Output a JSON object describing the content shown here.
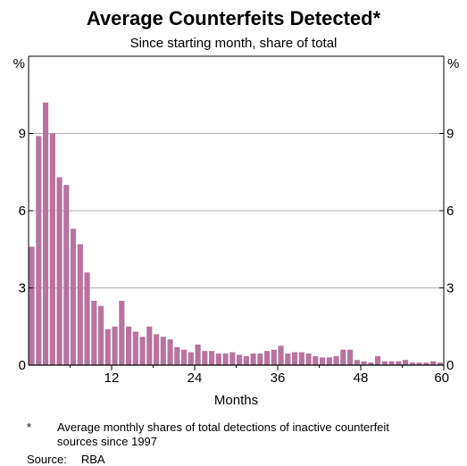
{
  "title": "Average Counterfeits Detected*",
  "subtitle": "Since starting month, share of total",
  "footnote": {
    "marker": "*",
    "text": "Average monthly shares of total detections of inactive counterfeit sources since 1997"
  },
  "source": {
    "label": "Source:",
    "value": "RBA"
  },
  "colors": {
    "bar": "#b8749e",
    "grid": "#b0b0b0",
    "axis": "#000000"
  },
  "chart_data": {
    "type": "bar",
    "title": "Average Counterfeits Detected*",
    "subtitle": "Since starting month, share of total",
    "xlabel": "Months",
    "ylabel_left": "%",
    "ylabel_right": "%",
    "ylim": [
      0,
      12
    ],
    "yticks": [
      0,
      3,
      6,
      9
    ],
    "xlim": [
      0,
      60
    ],
    "xticks": [
      12,
      24,
      36,
      48,
      60
    ],
    "grid": true,
    "x": [
      1,
      2,
      3,
      4,
      5,
      6,
      7,
      8,
      9,
      10,
      11,
      12,
      13,
      14,
      15,
      16,
      17,
      18,
      19,
      20,
      21,
      22,
      23,
      24,
      25,
      26,
      27,
      28,
      29,
      30,
      31,
      32,
      33,
      34,
      35,
      36,
      37,
      38,
      39,
      40,
      41,
      42,
      43,
      44,
      45,
      46,
      47,
      48,
      49,
      50,
      51,
      52,
      53,
      54,
      55,
      56,
      57,
      58,
      59,
      60
    ],
    "values": [
      4.6,
      8.9,
      10.2,
      9.0,
      7.3,
      7.0,
      5.3,
      4.7,
      3.6,
      2.5,
      2.3,
      1.4,
      1.5,
      2.5,
      1.5,
      1.3,
      1.1,
      1.5,
      1.2,
      1.1,
      1.0,
      0.7,
      0.6,
      0.5,
      0.8,
      0.55,
      0.55,
      0.45,
      0.45,
      0.5,
      0.4,
      0.35,
      0.45,
      0.45,
      0.55,
      0.6,
      0.75,
      0.45,
      0.5,
      0.5,
      0.45,
      0.35,
      0.3,
      0.3,
      0.35,
      0.6,
      0.6,
      0.2,
      0.15,
      0.1,
      0.35,
      0.15,
      0.15,
      0.15,
      0.2,
      0.1,
      0.1,
      0.1,
      0.15,
      0.1
    ]
  }
}
